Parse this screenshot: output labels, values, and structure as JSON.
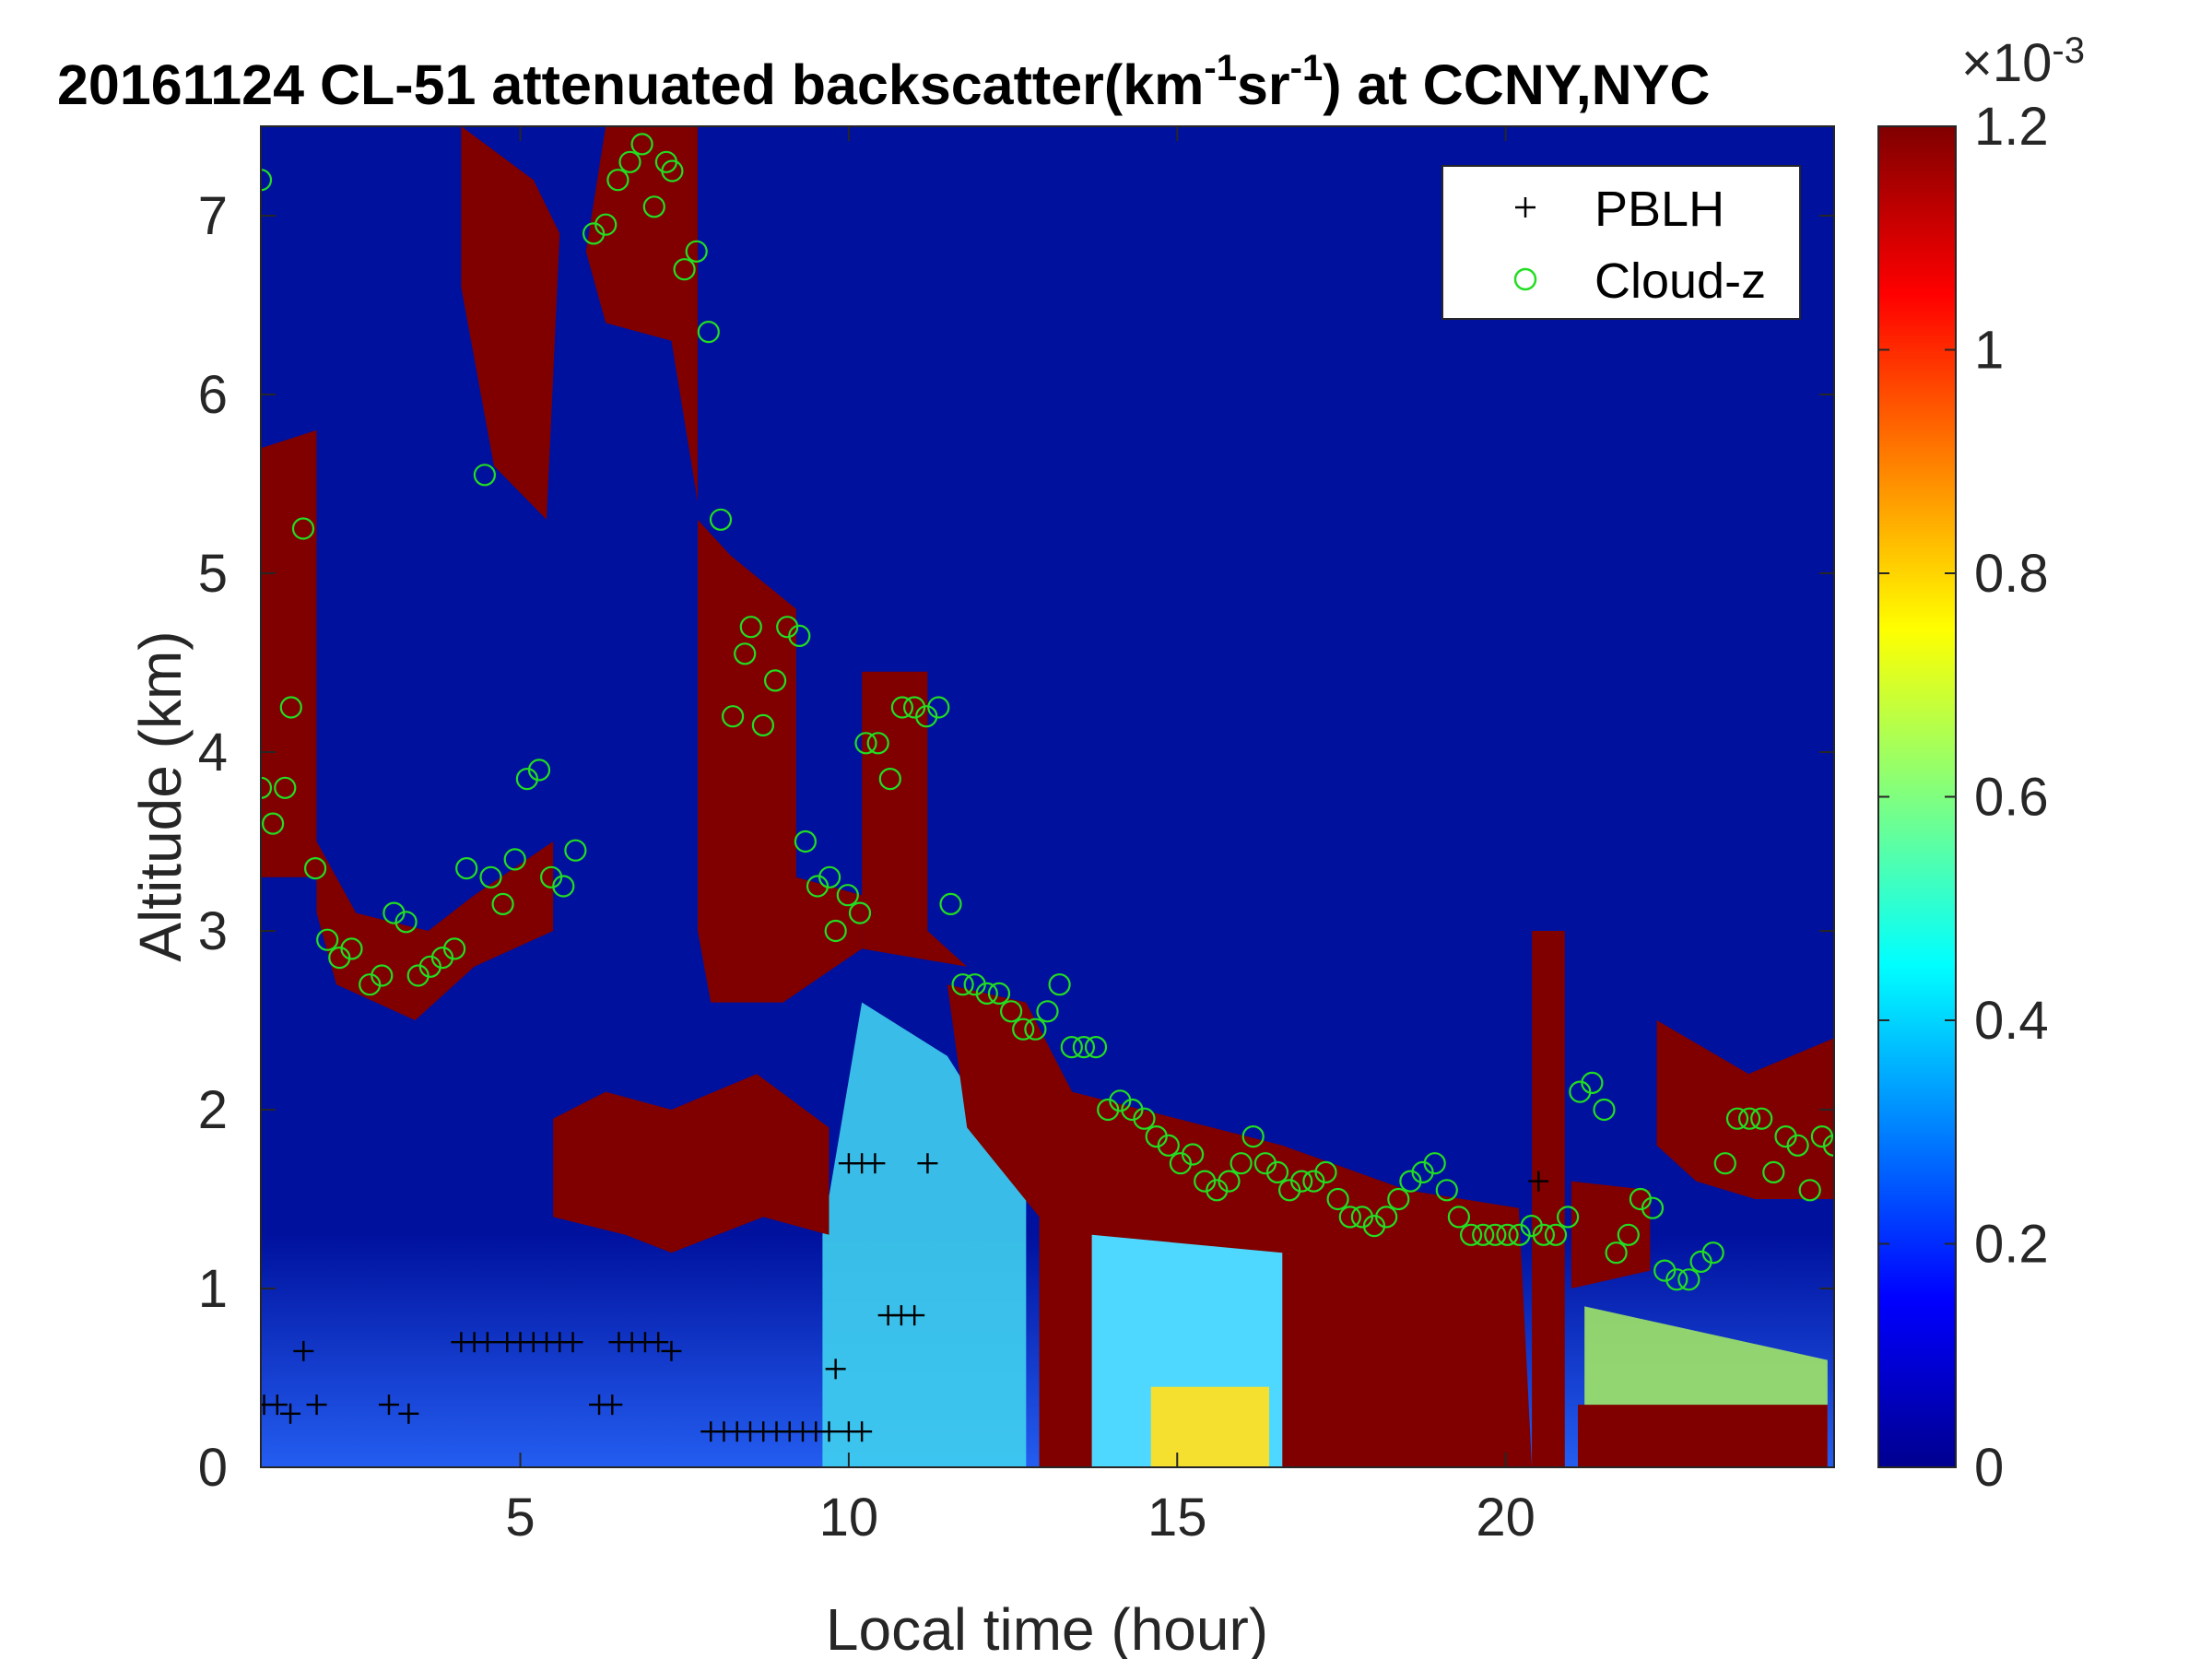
{
  "chart_data": {
    "type": "heatmap",
    "title_parts": [
      "20161124  CL-51 attenuated backscatter(km",
      "-1",
      "sr",
      "-1",
      ") at CCNY,NYC"
    ],
    "xlabel": "Local time (hour)",
    "ylabel": "Altitude (km)",
    "xlim": [
      1.05,
      25.0
    ],
    "ylim": [
      0,
      7.5
    ],
    "x_ticks": [
      "5",
      "10",
      "15",
      "20"
    ],
    "y_ticks": [
      "0",
      "1",
      "2",
      "3",
      "4",
      "5",
      "6",
      "7"
    ],
    "colorbar": {
      "range": [
        0,
        1.2
      ],
      "exponent_label": "×10",
      "exponent_value": "-3",
      "tick_labels": [
        "0",
        "0.2",
        "0.4",
        "0.6",
        "0.8",
        "1",
        "1.2"
      ],
      "colormap": "jet"
    },
    "legend": {
      "position": "top-right",
      "entries": [
        {
          "marker": "+",
          "label": "PBLH",
          "color": "#000000"
        },
        {
          "marker": "o",
          "label": "Cloud-z",
          "color": "#22dd22"
        }
      ]
    },
    "cloud_layer_upper": [
      [
        1.05,
        3.3
      ],
      [
        1.6,
        3.5
      ],
      [
        2.4,
        2.9
      ],
      [
        3.4,
        2.8
      ],
      [
        4.2,
        3.0
      ],
      [
        4.8,
        3.5
      ],
      [
        5.5,
        3.3
      ],
      [
        6.3,
        7.3
      ],
      [
        7.3,
        6.9
      ],
      [
        7.7,
        5.3
      ],
      [
        8.5,
        4.6
      ],
      [
        9.1,
        3.3
      ],
      [
        9.8,
        3.2
      ],
      [
        10.3,
        4.2
      ],
      [
        11.0,
        4.3
      ],
      [
        11.6,
        2.8
      ],
      [
        12.5,
        2.5
      ],
      [
        13.5,
        2.1
      ],
      [
        15.0,
        1.8
      ],
      [
        16.6,
        1.7
      ],
      [
        17.5,
        1.65
      ],
      [
        18.5,
        1.5
      ],
      [
        19.5,
        1.4
      ],
      [
        20.2,
        1.4
      ],
      [
        20.6,
        2.1
      ],
      [
        21.0,
        1.5
      ],
      [
        22.0,
        1.4
      ],
      [
        22.4,
        2.4
      ],
      [
        23.5,
        2.0
      ],
      [
        25.0,
        2.3
      ]
    ],
    "cloud_z_points": [
      [
        1.0,
        7.2
      ],
      [
        1.0,
        3.8
      ],
      [
        1.2,
        3.6
      ],
      [
        1.4,
        3.8
      ],
      [
        1.5,
        4.25
      ],
      [
        1.7,
        5.25
      ],
      [
        1.9,
        3.35
      ],
      [
        2.1,
        2.95
      ],
      [
        2.3,
        2.85
      ],
      [
        2.5,
        2.9
      ],
      [
        2.8,
        2.7
      ],
      [
        3.0,
        2.75
      ],
      [
        3.2,
        3.1
      ],
      [
        3.4,
        3.05
      ],
      [
        3.6,
        2.75
      ],
      [
        3.8,
        2.8
      ],
      [
        4.0,
        2.85
      ],
      [
        4.2,
        2.9
      ],
      [
        4.4,
        3.35
      ],
      [
        4.7,
        5.55
      ],
      [
        4.8,
        3.3
      ],
      [
        5.0,
        3.15
      ],
      [
        5.2,
        3.4
      ],
      [
        5.4,
        3.85
      ],
      [
        5.6,
        3.9
      ],
      [
        5.8,
        3.3
      ],
      [
        6.0,
        3.25
      ],
      [
        6.2,
        3.45
      ],
      [
        6.5,
        6.9
      ],
      [
        6.7,
        6.95
      ],
      [
        6.9,
        7.2
      ],
      [
        7.1,
        7.3
      ],
      [
        7.3,
        7.4
      ],
      [
        7.5,
        7.05
      ],
      [
        7.7,
        7.3
      ],
      [
        7.8,
        7.25
      ],
      [
        8.0,
        6.7
      ],
      [
        8.2,
        6.8
      ],
      [
        8.4,
        6.35
      ],
      [
        8.6,
        5.3
      ],
      [
        8.8,
        4.2
      ],
      [
        9.0,
        4.55
      ],
      [
        9.1,
        4.7
      ],
      [
        9.3,
        4.15
      ],
      [
        9.5,
        4.4
      ],
      [
        9.7,
        4.7
      ],
      [
        9.9,
        4.65
      ],
      [
        10.0,
        3.5
      ],
      [
        10.2,
        3.25
      ],
      [
        10.4,
        3.3
      ],
      [
        10.5,
        3.0
      ],
      [
        10.7,
        3.2
      ],
      [
        10.9,
        3.1
      ],
      [
        11.0,
        4.05
      ],
      [
        11.2,
        4.05
      ],
      [
        11.4,
        3.85
      ],
      [
        11.6,
        4.25
      ],
      [
        11.8,
        4.25
      ],
      [
        12.0,
        4.2
      ],
      [
        12.2,
        4.25
      ],
      [
        12.4,
        3.15
      ],
      [
        12.6,
        2.7
      ],
      [
        12.8,
        2.7
      ],
      [
        13.0,
        2.65
      ],
      [
        13.2,
        2.65
      ],
      [
        13.4,
        2.55
      ],
      [
        13.6,
        2.45
      ],
      [
        13.8,
        2.45
      ],
      [
        14.0,
        2.55
      ],
      [
        14.2,
        2.7
      ],
      [
        14.4,
        2.35
      ],
      [
        14.6,
        2.35
      ],
      [
        14.8,
        2.35
      ],
      [
        15.0,
        2.0
      ],
      [
        15.2,
        2.05
      ],
      [
        15.4,
        2.0
      ],
      [
        15.6,
        1.95
      ],
      [
        15.8,
        1.85
      ],
      [
        16.0,
        1.8
      ],
      [
        16.2,
        1.7
      ],
      [
        16.4,
        1.75
      ],
      [
        16.6,
        1.6
      ],
      [
        16.8,
        1.55
      ],
      [
        17.0,
        1.6
      ],
      [
        17.2,
        1.7
      ],
      [
        17.4,
        1.85
      ],
      [
        17.6,
        1.7
      ],
      [
        17.8,
        1.65
      ],
      [
        18.0,
        1.55
      ],
      [
        18.2,
        1.6
      ],
      [
        18.4,
        1.6
      ],
      [
        18.6,
        1.65
      ],
      [
        18.8,
        1.5
      ],
      [
        19.0,
        1.4
      ],
      [
        19.2,
        1.4
      ],
      [
        19.4,
        1.35
      ],
      [
        19.6,
        1.4
      ],
      [
        19.8,
        1.5
      ],
      [
        20.0,
        1.6
      ],
      [
        20.2,
        1.65
      ],
      [
        20.4,
        1.7
      ],
      [
        20.6,
        1.55
      ],
      [
        20.8,
        1.4
      ],
      [
        21.0,
        1.3
      ],
      [
        21.2,
        1.3
      ],
      [
        21.4,
        1.3
      ],
      [
        21.6,
        1.3
      ],
      [
        21.8,
        1.3
      ],
      [
        22.0,
        1.35
      ],
      [
        22.2,
        1.3
      ],
      [
        22.4,
        1.3
      ],
      [
        22.6,
        1.4
      ],
      [
        22.8,
        2.1
      ],
      [
        23.0,
        2.15
      ],
      [
        23.2,
        2.0
      ],
      [
        23.4,
        1.2
      ],
      [
        23.6,
        1.3
      ],
      [
        23.8,
        1.5
      ],
      [
        24.0,
        1.45
      ],
      [
        24.2,
        1.1
      ],
      [
        24.4,
        1.05
      ],
      [
        24.6,
        1.05
      ],
      [
        24.8,
        1.15
      ],
      [
        25.0,
        1.2
      ],
      [
        25.2,
        1.7
      ],
      [
        25.4,
        1.95
      ],
      [
        25.6,
        1.95
      ],
      [
        25.8,
        1.95
      ],
      [
        26.0,
        1.65
      ],
      [
        26.2,
        1.85
      ],
      [
        26.4,
        1.8
      ],
      [
        26.6,
        1.55
      ],
      [
        26.8,
        1.85
      ],
      [
        27.0,
        1.8
      ]
    ],
    "pblh_points": [
      [
        1.1,
        0.35
      ],
      [
        1.3,
        0.35
      ],
      [
        1.5,
        0.3
      ],
      [
        1.7,
        0.65
      ],
      [
        1.9,
        0.35
      ],
      [
        3.0,
        0.35
      ],
      [
        3.3,
        0.3
      ],
      [
        4.1,
        0.7
      ],
      [
        4.3,
        0.7
      ],
      [
        4.5,
        0.7
      ],
      [
        4.8,
        0.7
      ],
      [
        5.0,
        0.7
      ],
      [
        5.2,
        0.7
      ],
      [
        5.4,
        0.7
      ],
      [
        5.6,
        0.7
      ],
      [
        5.8,
        0.7
      ],
      [
        6.2,
        0.35
      ],
      [
        6.4,
        0.35
      ],
      [
        6.5,
        0.7
      ],
      [
        6.7,
        0.7
      ],
      [
        6.9,
        0.7
      ],
      [
        7.1,
        0.7
      ],
      [
        7.3,
        0.65
      ],
      [
        7.9,
        0.2
      ],
      [
        8.1,
        0.2
      ],
      [
        8.3,
        0.2
      ],
      [
        8.5,
        0.2
      ],
      [
        8.7,
        0.2
      ],
      [
        8.9,
        0.2
      ],
      [
        9.1,
        0.2
      ],
      [
        9.3,
        0.2
      ],
      [
        9.5,
        0.2
      ],
      [
        9.7,
        0.2
      ],
      [
        9.8,
        0.55
      ],
      [
        10.0,
        0.2
      ],
      [
        10.2,
        0.2
      ],
      [
        10.0,
        1.7
      ],
      [
        10.2,
        1.7
      ],
      [
        10.4,
        1.7
      ],
      [
        11.2,
        1.7
      ],
      [
        10.6,
        0.85
      ],
      [
        10.8,
        0.85
      ],
      [
        11.0,
        0.85
      ],
      [
        20.5,
        1.6
      ]
    ]
  }
}
